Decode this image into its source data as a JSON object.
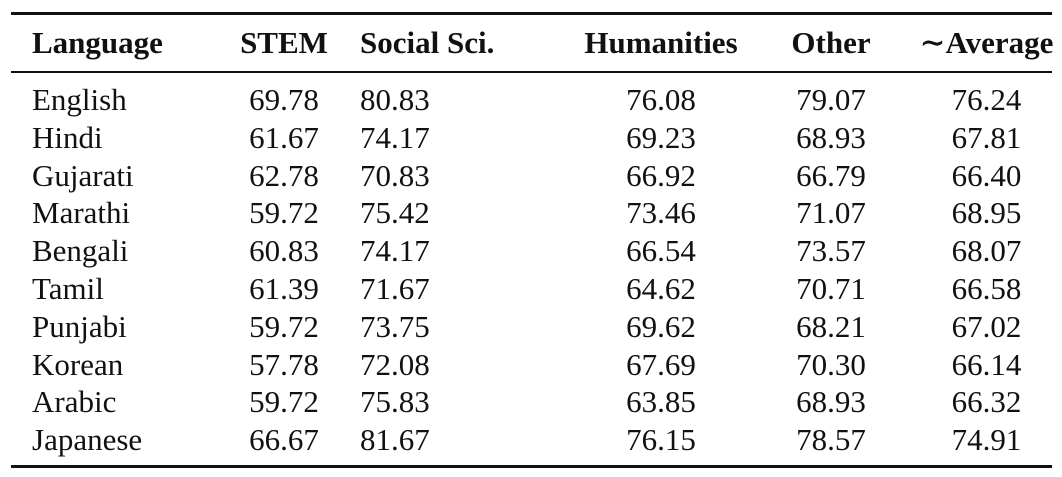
{
  "table": {
    "headers": {
      "language": "Language",
      "stem": "STEM",
      "social": "Social Sci.",
      "humanities": "Humanities",
      "other": "Other",
      "average": "∼Average"
    },
    "rows": [
      {
        "language": "English",
        "stem": "69.78",
        "social": "80.83",
        "humanities": "76.08",
        "other": "79.07",
        "average": "76.24"
      },
      {
        "language": "Hindi",
        "stem": "61.67",
        "social": "74.17",
        "humanities": "69.23",
        "other": "68.93",
        "average": "67.81"
      },
      {
        "language": "Gujarati",
        "stem": "62.78",
        "social": "70.83",
        "humanities": "66.92",
        "other": "66.79",
        "average": "66.40"
      },
      {
        "language": "Marathi",
        "stem": "59.72",
        "social": "75.42",
        "humanities": "73.46",
        "other": "71.07",
        "average": "68.95"
      },
      {
        "language": "Bengali",
        "stem": "60.83",
        "social": "74.17",
        "humanities": "66.54",
        "other": "73.57",
        "average": "68.07"
      },
      {
        "language": "Tamil",
        "stem": "61.39",
        "social": "71.67",
        "humanities": "64.62",
        "other": "70.71",
        "average": "66.58"
      },
      {
        "language": "Punjabi",
        "stem": "59.72",
        "social": "73.75",
        "humanities": "69.62",
        "other": "68.21",
        "average": "67.02"
      },
      {
        "language": "Korean",
        "stem": "57.78",
        "social": "72.08",
        "humanities": "67.69",
        "other": "70.30",
        "average": "66.14"
      },
      {
        "language": "Arabic",
        "stem": "59.72",
        "social": "75.83",
        "humanities": "63.85",
        "other": "68.93",
        "average": "66.32"
      },
      {
        "language": "Japanese",
        "stem": "66.67",
        "social": "81.67",
        "humanities": "76.15",
        "other": "78.57",
        "average": "74.91"
      }
    ]
  }
}
